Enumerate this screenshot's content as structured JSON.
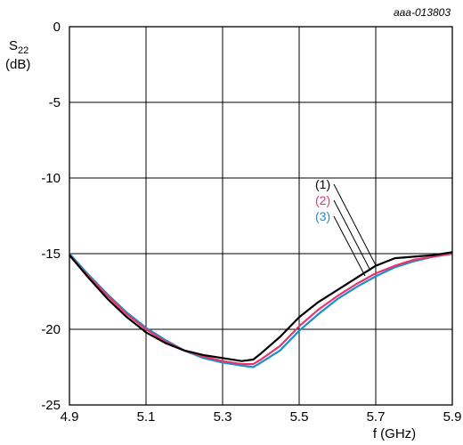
{
  "doc_id": "aaa-013803",
  "chart_data": {
    "type": "line",
    "ylabel_main": "S",
    "ylabel_sub": "22",
    "ylabel_unit": "(dB)",
    "xlabel": "f (GHz)",
    "xlim": [
      4.9,
      5.9
    ],
    "ylim": [
      -25,
      0
    ],
    "x_ticks": [
      "4.9",
      "5.1",
      "5.3",
      "5.5",
      "5.7",
      "5.9"
    ],
    "y_ticks": [
      "0",
      "-5",
      "-10",
      "-15",
      "-20",
      "-25"
    ],
    "grid": true,
    "series": [
      {
        "name": "(1)",
        "color": "#000000",
        "x": [
          4.9,
          4.95,
          5.0,
          5.05,
          5.1,
          5.15,
          5.2,
          5.25,
          5.3,
          5.35,
          5.38,
          5.4,
          5.45,
          5.5,
          5.55,
          5.6,
          5.65,
          5.7,
          5.75,
          5.8,
          5.85,
          5.9
        ],
        "y": [
          -15.1,
          -16.6,
          -18.0,
          -19.2,
          -20.2,
          -20.9,
          -21.4,
          -21.7,
          -21.9,
          -22.1,
          -22.0,
          -21.6,
          -20.5,
          -19.2,
          -18.2,
          -17.4,
          -16.6,
          -15.8,
          -15.3,
          -15.2,
          -15.1,
          -14.9
        ]
      },
      {
        "name": "(2)",
        "color": "#e8336e",
        "x": [
          4.9,
          4.95,
          5.0,
          5.05,
          5.1,
          5.15,
          5.2,
          5.25,
          5.3,
          5.35,
          5.38,
          5.4,
          5.45,
          5.5,
          5.55,
          5.6,
          5.65,
          5.7,
          5.75,
          5.8,
          5.85,
          5.9
        ],
        "y": [
          -15.1,
          -16.5,
          -17.8,
          -19.0,
          -20.0,
          -20.8,
          -21.4,
          -21.8,
          -22.1,
          -22.3,
          -22.3,
          -22.0,
          -21.1,
          -19.8,
          -18.7,
          -17.8,
          -17.0,
          -16.3,
          -15.8,
          -15.4,
          -15.2,
          -15.0
        ]
      },
      {
        "name": "(3)",
        "color": "#1a8fc9",
        "x": [
          4.9,
          4.95,
          5.0,
          5.05,
          5.1,
          5.15,
          5.2,
          5.25,
          5.3,
          5.35,
          5.38,
          5.4,
          5.45,
          5.5,
          5.55,
          5.6,
          5.65,
          5.7,
          5.75,
          5.8,
          5.85,
          5.9
        ],
        "y": [
          -15.0,
          -16.4,
          -17.7,
          -18.9,
          -19.9,
          -20.7,
          -21.4,
          -21.9,
          -22.2,
          -22.4,
          -22.5,
          -22.2,
          -21.4,
          -20.1,
          -19.0,
          -18.0,
          -17.2,
          -16.5,
          -15.9,
          -15.5,
          -15.2,
          -15.0
        ]
      }
    ]
  }
}
